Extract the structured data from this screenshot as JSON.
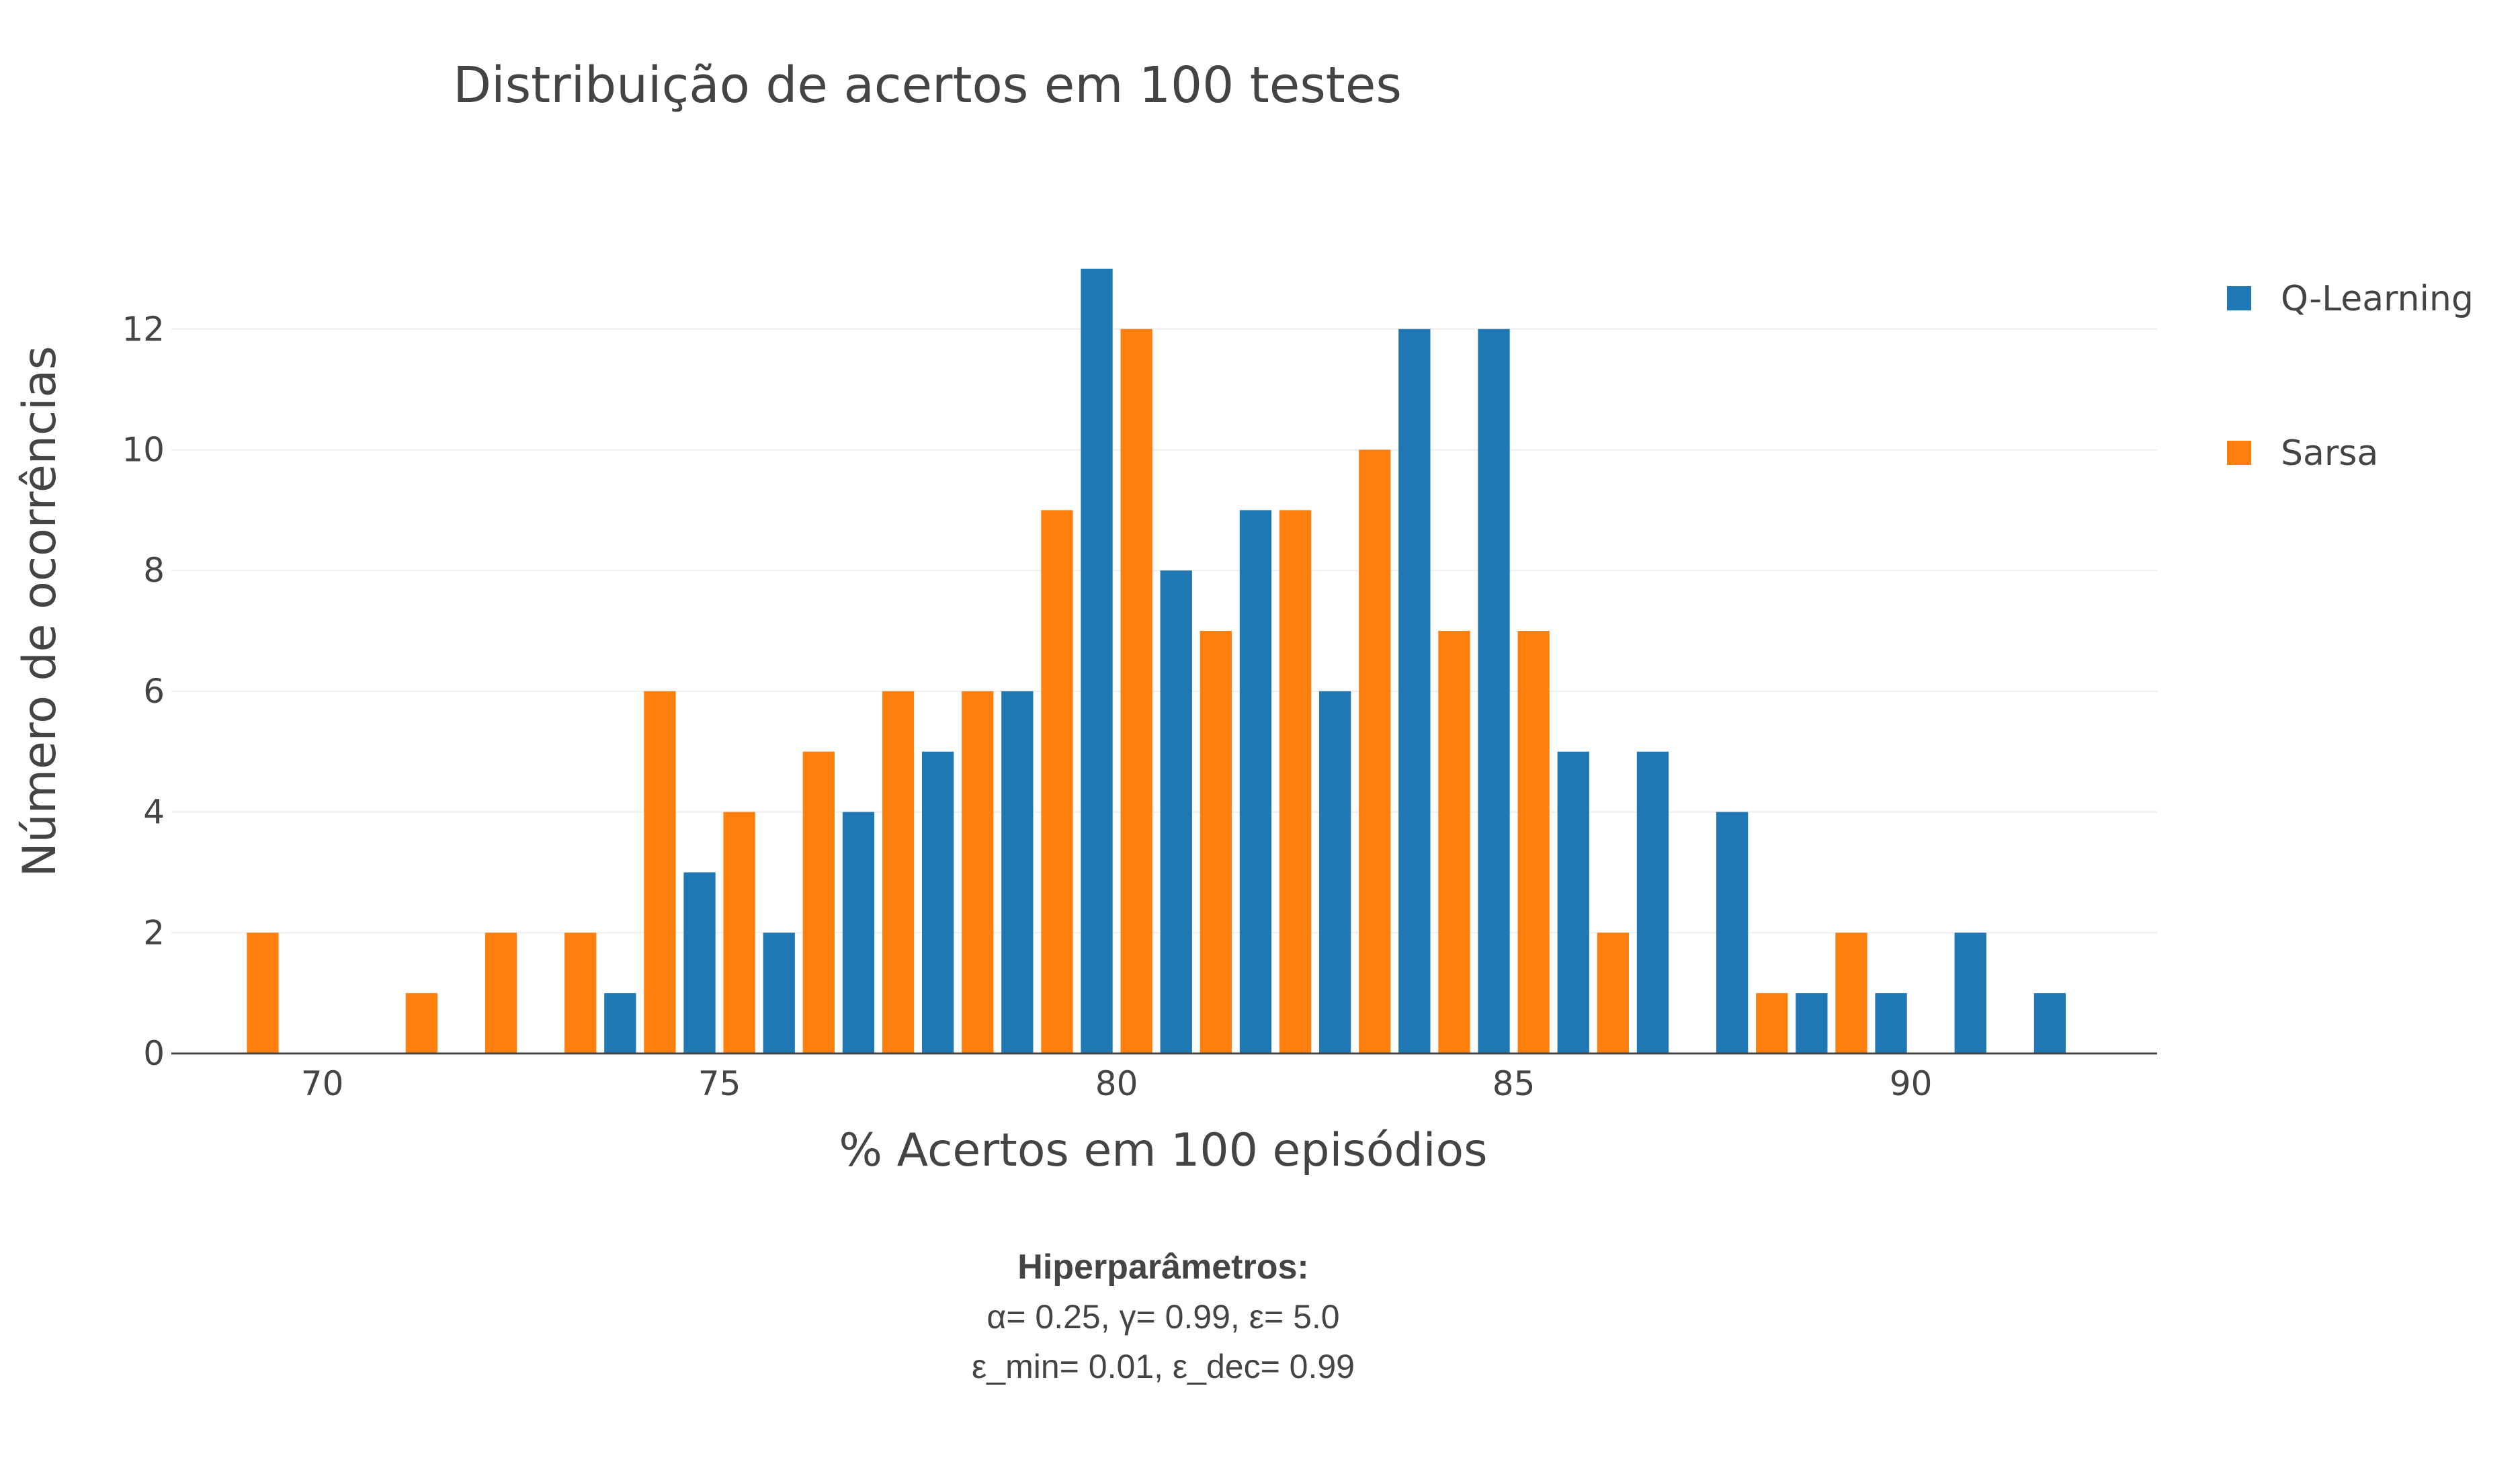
{
  "chart_data": {
    "type": "bar",
    "title": "Distribuição de acertos em 100 testes",
    "xlabel": "% Acertos em 100 episódios",
    "ylabel": "Número de ocorrências",
    "x_ticks": [
      "70",
      "75",
      "80",
      "85",
      "90"
    ],
    "y_ticks": [
      "0",
      "2",
      "4",
      "6",
      "8",
      "10",
      "12"
    ],
    "xlim": [
      68.1,
      93.1
    ],
    "ylim": [
      0,
      13.7
    ],
    "bin_width": 1,
    "grid": true,
    "legend_position": "top-right",
    "bins": [
      69,
      70,
      71,
      72,
      73,
      74,
      75,
      76,
      77,
      78,
      79,
      80,
      81,
      82,
      83,
      84,
      85,
      86,
      87,
      88,
      89,
      90,
      91,
      92
    ],
    "series": [
      {
        "name": "Q-Learning",
        "color": "#1f77b4",
        "values": [
          0,
          0,
          0,
          0,
          0,
          1,
          3,
          2,
          4,
          5,
          6,
          13,
          8,
          9,
          6,
          12,
          12,
          5,
          5,
          4,
          1,
          1,
          2,
          1
        ]
      },
      {
        "name": "Sarsa",
        "color": "#ff7f0e",
        "values": [
          2,
          0,
          1,
          2,
          2,
          6,
          4,
          5,
          6,
          6,
          9,
          12,
          7,
          9,
          10,
          7,
          7,
          2,
          0,
          1,
          2,
          0,
          0,
          0
        ]
      }
    ]
  },
  "annotation": {
    "heading": "Hiperparâmetros:",
    "line1": "α= 0.25, γ= 0.99, ε= 5.0",
    "line2": "ε_min= 0.01, ε_dec= 0.99"
  },
  "colors": {
    "grid": "#eeeeee",
    "axis": "#444444"
  }
}
